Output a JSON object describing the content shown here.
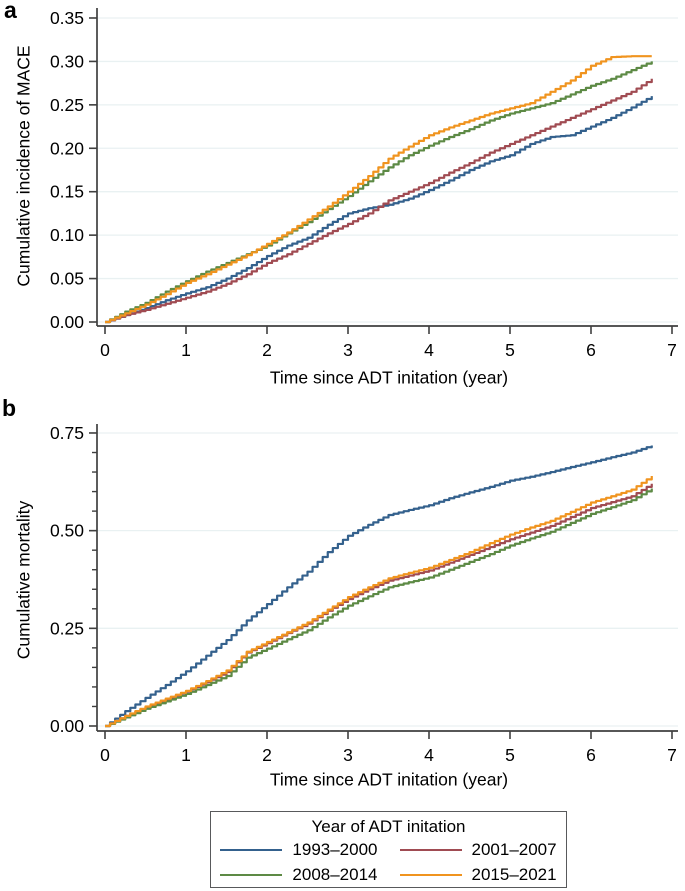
{
  "figure": {
    "background": "#ffffff",
    "axis_color": "#3f3f3f",
    "grid_color": "#e9f1f2",
    "tick_label_color": "#000000"
  },
  "legend": {
    "title": "Year of ADT initation",
    "entries": [
      {
        "label": "1993–2000",
        "color": "#34618d"
      },
      {
        "label": "2001–2007",
        "color": "#a04b52"
      },
      {
        "label": "2008–2014",
        "color": "#5d8a45"
      },
      {
        "label": "2015–2021",
        "color": "#f0941f"
      }
    ],
    "position": "bottom-center"
  },
  "chart_data": [
    {
      "type": "line",
      "panel_label": "a",
      "line_style": "step-after",
      "ylabel": "Cumulative incidence of MACE",
      "xlabel": "Time since ADT initation (year)",
      "xlim": [
        0,
        7
      ],
      "ylim": [
        0,
        0.35
      ],
      "x_tick_labels": [
        "0",
        "1",
        "2",
        "3",
        "4",
        "5",
        "6",
        "7"
      ],
      "x_ticks": [
        0,
        1,
        2,
        3,
        4,
        5,
        6,
        7
      ],
      "y_tick_labels": [
        "0.00",
        "0.05",
        "0.10",
        "0.15",
        "0.20",
        "0.25",
        "0.30",
        "0.35"
      ],
      "y_ticks": [
        0,
        0.05,
        0.1,
        0.15,
        0.2,
        0.25,
        0.3,
        0.35
      ],
      "y_minor_tick_step": null,
      "grid": "horizontal-major",
      "x": [
        0,
        0.25,
        0.5,
        0.75,
        1,
        1.25,
        1.5,
        1.75,
        2,
        2.25,
        2.5,
        2.75,
        3,
        3.25,
        3.5,
        3.75,
        4,
        4.25,
        4.5,
        4.75,
        5,
        5.25,
        5.5,
        5.75,
        6,
        6.25,
        6.5,
        6.75
      ],
      "series": [
        {
          "name": "1993–2000",
          "color": "#34618d",
          "values": [
            0.0,
            0.008,
            0.016,
            0.025,
            0.033,
            0.04,
            0.05,
            0.062,
            0.076,
            0.088,
            0.097,
            0.112,
            0.125,
            0.131,
            0.135,
            0.142,
            0.152,
            0.163,
            0.175,
            0.185,
            0.192,
            0.205,
            0.213,
            0.215,
            0.225,
            0.235,
            0.247,
            0.26
          ]
        },
        {
          "name": "2001–2007",
          "color": "#a04b52",
          "values": [
            0.0,
            0.008,
            0.014,
            0.021,
            0.028,
            0.035,
            0.044,
            0.055,
            0.068,
            0.078,
            0.09,
            0.102,
            0.113,
            0.125,
            0.14,
            0.15,
            0.16,
            0.172,
            0.183,
            0.195,
            0.205,
            0.215,
            0.225,
            0.235,
            0.245,
            0.255,
            0.265,
            0.28
          ]
        },
        {
          "name": "2008–2014",
          "color": "#5d8a45",
          "values": [
            0.0,
            0.012,
            0.022,
            0.035,
            0.047,
            0.058,
            0.068,
            0.078,
            0.088,
            0.102,
            0.115,
            0.13,
            0.145,
            0.162,
            0.178,
            0.192,
            0.203,
            0.213,
            0.222,
            0.232,
            0.24,
            0.246,
            0.252,
            0.262,
            0.272,
            0.28,
            0.29,
            0.3
          ]
        },
        {
          "name": "2015–2021",
          "color": "#f0941f",
          "values": [
            0.0,
            0.01,
            0.02,
            0.032,
            0.045,
            0.055,
            0.066,
            0.077,
            0.09,
            0.103,
            0.118,
            0.133,
            0.15,
            0.168,
            0.188,
            0.202,
            0.215,
            0.224,
            0.232,
            0.24,
            0.246,
            0.252,
            0.265,
            0.278,
            0.295,
            0.305,
            0.306,
            0.306
          ]
        }
      ]
    },
    {
      "type": "line",
      "panel_label": "b",
      "line_style": "step-after",
      "ylabel": "Cumulative mortality",
      "xlabel": "Time since ADT initation (year)",
      "xlim": [
        0,
        7
      ],
      "ylim": [
        0,
        0.75
      ],
      "x_tick_labels": [
        "0",
        "1",
        "2",
        "3",
        "4",
        "5",
        "6",
        "7"
      ],
      "x_ticks": [
        0,
        1,
        2,
        3,
        4,
        5,
        6,
        7
      ],
      "y_tick_labels": [
        "0.00",
        "0.25",
        "0.50",
        "0.75"
      ],
      "y_ticks": [
        0,
        0.25,
        0.5,
        0.75
      ],
      "y_minor_tick_step": 0.05,
      "grid": "horizontal-major",
      "x": [
        0,
        0.25,
        0.5,
        0.75,
        1,
        1.25,
        1.5,
        1.75,
        2,
        2.25,
        2.5,
        2.75,
        3,
        3.25,
        3.5,
        3.75,
        4,
        4.25,
        4.5,
        4.75,
        5,
        5.25,
        5.5,
        5.75,
        6,
        6.25,
        6.5,
        6.75
      ],
      "series": [
        {
          "name": "1993–2000",
          "color": "#34618d",
          "values": [
            0.0,
            0.038,
            0.072,
            0.105,
            0.14,
            0.18,
            0.22,
            0.27,
            0.312,
            0.355,
            0.395,
            0.445,
            0.487,
            0.515,
            0.54,
            0.553,
            0.565,
            0.583,
            0.598,
            0.612,
            0.628,
            0.638,
            0.65,
            0.663,
            0.675,
            0.688,
            0.7,
            0.718
          ]
        },
        {
          "name": "2001–2007",
          "color": "#a04b52",
          "values": [
            0.0,
            0.026,
            0.048,
            0.068,
            0.088,
            0.112,
            0.138,
            0.188,
            0.212,
            0.238,
            0.262,
            0.295,
            0.325,
            0.35,
            0.372,
            0.385,
            0.398,
            0.418,
            0.438,
            0.458,
            0.478,
            0.495,
            0.512,
            0.535,
            0.558,
            0.573,
            0.588,
            0.62
          ]
        },
        {
          "name": "2008–2014",
          "color": "#5d8a45",
          "values": [
            0.0,
            0.022,
            0.044,
            0.063,
            0.082,
            0.105,
            0.128,
            0.175,
            0.198,
            0.222,
            0.245,
            0.278,
            0.308,
            0.332,
            0.355,
            0.368,
            0.38,
            0.4,
            0.42,
            0.44,
            0.462,
            0.48,
            0.497,
            0.52,
            0.543,
            0.56,
            0.578,
            0.608
          ]
        },
        {
          "name": "2015–2021",
          "color": "#f0941f",
          "values": [
            0.0,
            0.026,
            0.05,
            0.07,
            0.09,
            0.115,
            0.142,
            0.19,
            0.215,
            0.24,
            0.265,
            0.298,
            0.33,
            0.355,
            0.378,
            0.392,
            0.405,
            0.425,
            0.445,
            0.468,
            0.49,
            0.508,
            0.525,
            0.548,
            0.572,
            0.588,
            0.605,
            0.64
          ]
        }
      ]
    }
  ]
}
